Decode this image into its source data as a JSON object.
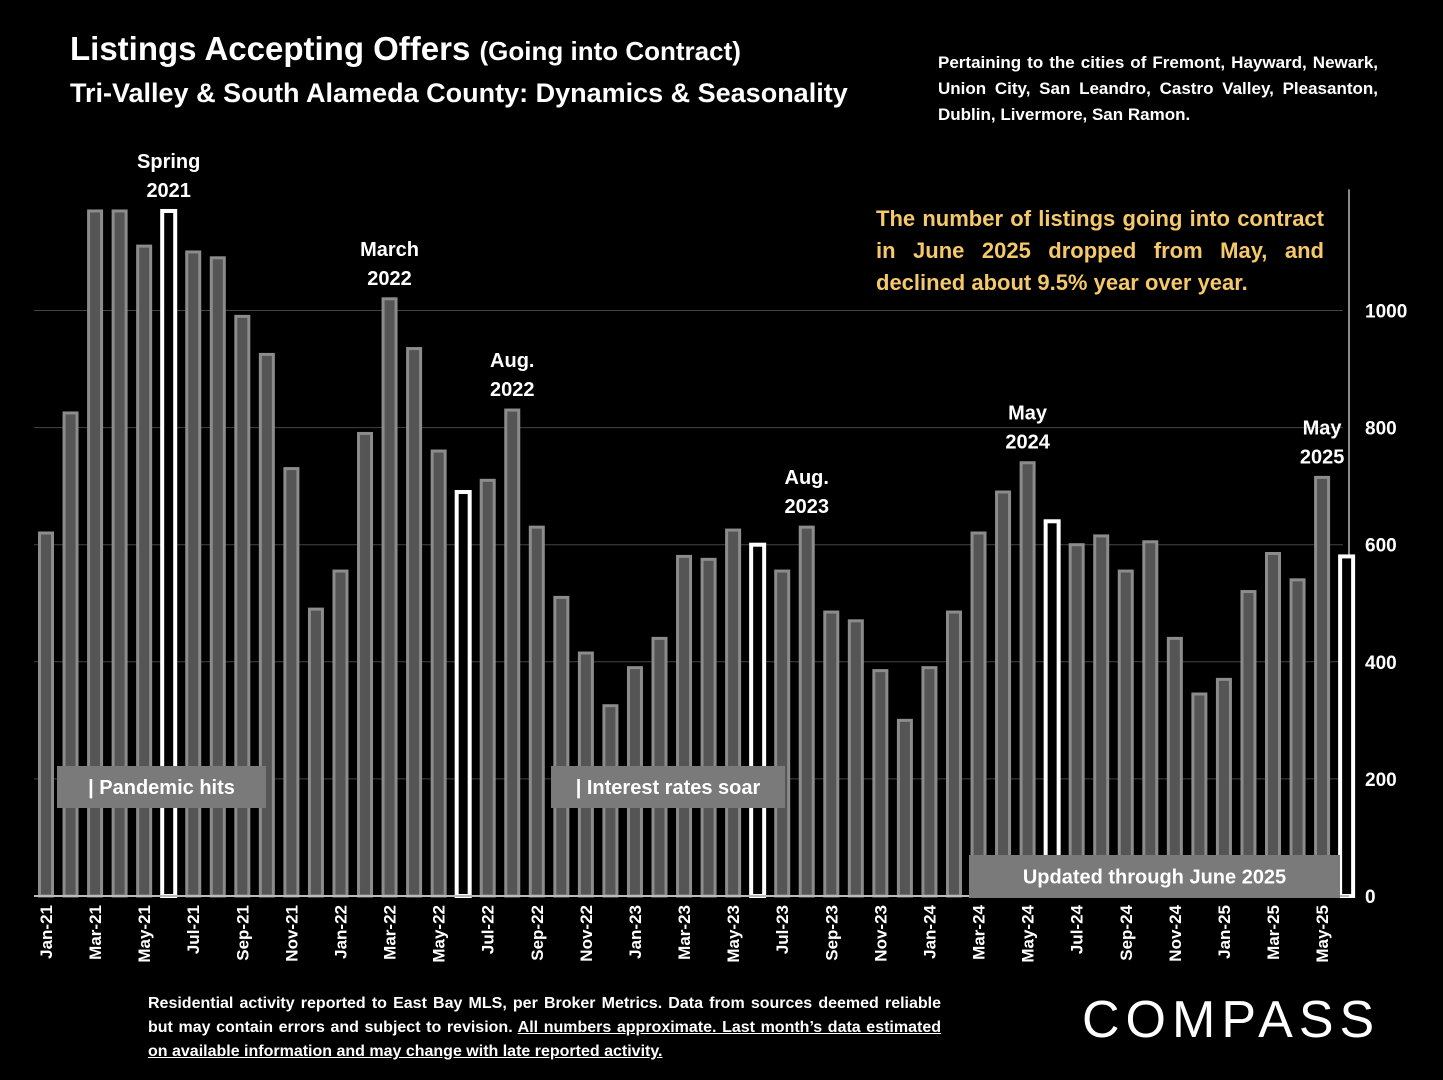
{
  "header": {
    "title": "Listings Accepting Offers",
    "title_paren": "(Going into Contract)",
    "subtitle": "Tri-Valley & South Alameda County: Dynamics & Seasonality",
    "pertaining": "Pertaining to the cities of Fremont, Hayward, Newark, Union City, San Leandro, Castro Valley, Pleasanton, Dublin, Livermore, San Ramon."
  },
  "callout": "The number of listings going into contract in June 2025 dropped from May, and declined about 9.5% year over year.",
  "footer": {
    "note_plain": "Residential activity reported to East Bay MLS, per Broker Metrics. Data from sources deemed reliable but may contain errors and subject to revision. ",
    "note_underlined": "All numbers approximate. Last month’s data estimated on available information and may change with late reported activity.",
    "logo": "COMPASS"
  },
  "colors": {
    "bar_fill": "#555555",
    "bar_stroke": "#8c8c8c",
    "highlight_stroke": "#ffffff",
    "callout_text": "#f5c96a",
    "grid": "#444444"
  },
  "chart_data": {
    "type": "bar",
    "categories": [
      "Jan-21",
      "Feb-21",
      "Mar-21",
      "Apr-21",
      "May-21",
      "Jun-21",
      "Jul-21",
      "Aug-21",
      "Sep-21",
      "Oct-21",
      "Nov-21",
      "Dec-21",
      "Jan-22",
      "Feb-22",
      "Mar-22",
      "Apr-22",
      "May-22",
      "Jun-22",
      "Jul-22",
      "Aug-22",
      "Sep-22",
      "Oct-22",
      "Nov-22",
      "Dec-22",
      "Jan-23",
      "Feb-23",
      "Mar-23",
      "Apr-23",
      "May-23",
      "Jun-23",
      "Jul-23",
      "Aug-23",
      "Sep-23",
      "Oct-23",
      "Nov-23",
      "Dec-23",
      "Jan-24",
      "Feb-24",
      "Mar-24",
      "Apr-24",
      "May-24",
      "Jun-24",
      "Jul-24",
      "Aug-24",
      "Sep-24",
      "Oct-24",
      "Nov-24",
      "Dec-24",
      "Jan-25",
      "Feb-25",
      "Mar-25",
      "Apr-25",
      "May-25",
      "Jun-25"
    ],
    "tick_labels": [
      "Jan-21",
      "Mar-21",
      "May-21",
      "Jul-21",
      "Sep-21",
      "Nov-21",
      "Jan-22",
      "Mar-22",
      "May-22",
      "Jul-22",
      "Sep-22",
      "Nov-22",
      "Jan-23",
      "Mar-23",
      "May-23",
      "Jul-23",
      "Sep-23",
      "Nov-23",
      "Jan-24",
      "Mar-24",
      "May-24",
      "Jul-24",
      "Sep-24",
      "Nov-24",
      "Jan-25",
      "Mar-25",
      "May-25"
    ],
    "values": [
      620,
      825,
      1170,
      1170,
      1110,
      1170,
      1100,
      1090,
      990,
      925,
      730,
      490,
      555,
      790,
      1020,
      935,
      760,
      690,
      710,
      830,
      630,
      510,
      415,
      325,
      390,
      440,
      580,
      575,
      625,
      600,
      555,
      630,
      485,
      470,
      385,
      300,
      390,
      485,
      620,
      690,
      740,
      640,
      600,
      615,
      555,
      605,
      440,
      345,
      370,
      520,
      585,
      540,
      715,
      580
    ],
    "highlight": [
      "Jun-21",
      "Jun-22",
      "Jun-23",
      "Jun-24",
      "Jun-25"
    ],
    "ylim": [
      0,
      1200
    ],
    "yticks": [
      0,
      200,
      400,
      600,
      800,
      1000
    ],
    "grid": true,
    "y_axis_side": "right",
    "annotations": [
      {
        "category": "Jun-21",
        "text": "Spring 2021",
        "lines": [
          "Spring",
          "2021"
        ]
      },
      {
        "category": "Mar-22",
        "text": "March 2022",
        "lines": [
          "March",
          "2022"
        ]
      },
      {
        "category": "Aug-22",
        "text": "Aug. 2022",
        "lines": [
          "Aug.",
          "2022"
        ]
      },
      {
        "category": "Aug-23",
        "text": "Aug. 2023",
        "lines": [
          "Aug.",
          "2023"
        ]
      },
      {
        "category": "May-24",
        "text": "May 2024",
        "lines": [
          "May",
          "2024"
        ]
      },
      {
        "category": "May-25",
        "text": "May 2025",
        "lines": [
          "May",
          "2025"
        ]
      }
    ],
    "labels": {
      "pandemic": "| Pandemic hits",
      "rates": "| Interest rates soar",
      "updated": "Updated through June 2025"
    }
  }
}
